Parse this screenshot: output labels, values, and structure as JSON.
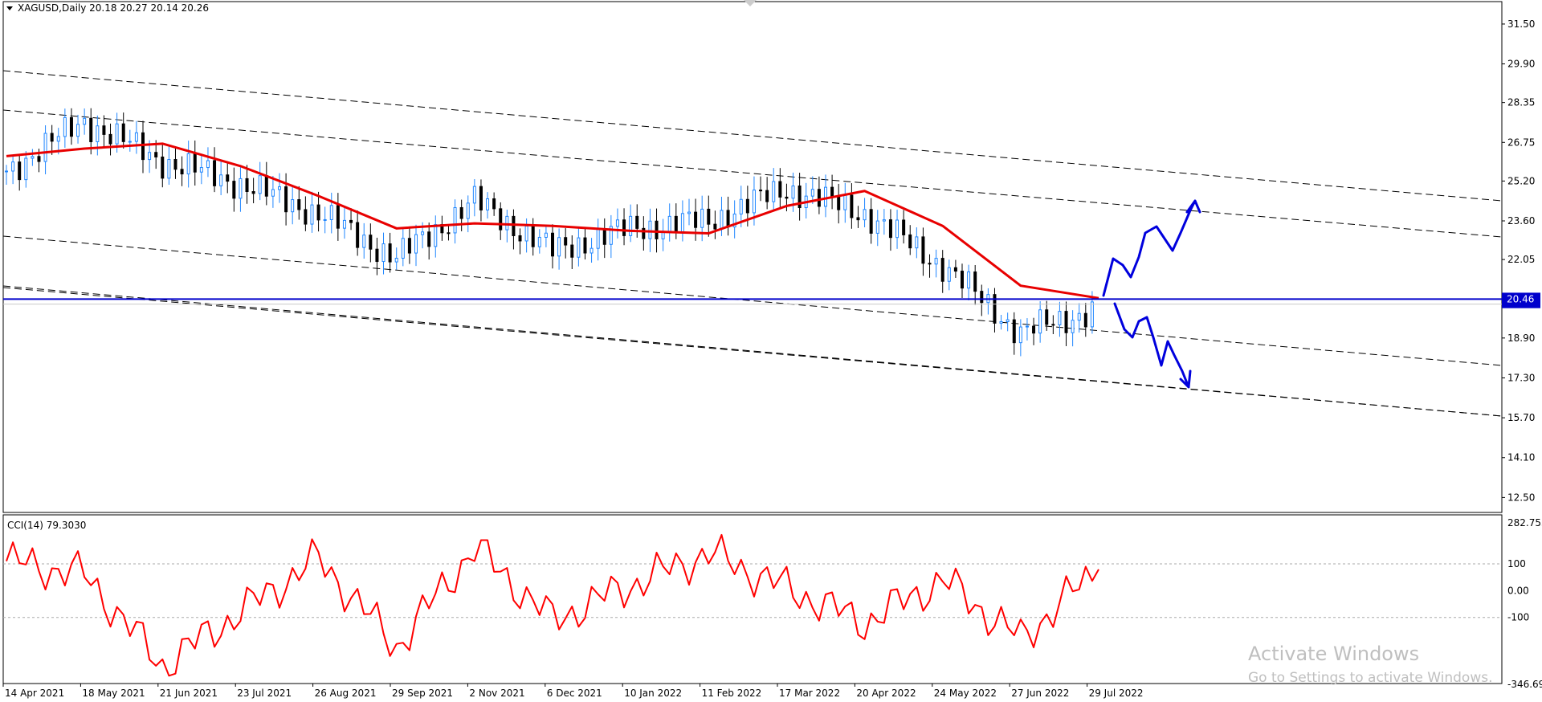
{
  "symbol_header": "XAGUSD,Daily  20.18 20.27 20.14 20.26",
  "indicator_label": "CCI(14) 79.3030",
  "watermark": {
    "title": "Activate Windows",
    "subtitle": "Go to Settings to activate Windows."
  },
  "price_panel": {
    "y_ticks": [
      "31.50",
      "29.90",
      "28.35",
      "26.75",
      "25.20",
      "23.60",
      "22.05",
      "20.46",
      "18.90",
      "17.30",
      "15.70",
      "14.10",
      "12.50"
    ],
    "y_tick_values": [
      31.5,
      29.9,
      28.35,
      26.75,
      25.2,
      23.6,
      22.05,
      20.46,
      18.9,
      17.3,
      15.7,
      14.1,
      12.5
    ],
    "ylim": [
      11.9,
      32.4
    ],
    "current_price_label": "20.46",
    "current_price": 20.46,
    "hidden_price_label": "20.26",
    "hidden_price": 20.26,
    "horizontal_line_price": 20.46
  },
  "cci_panel": {
    "y_ticks": [
      "282.753",
      "100",
      "0.00",
      "-100",
      "-346.697"
    ],
    "y_tick_values": [
      282.753,
      100,
      0,
      -100,
      -346.697
    ],
    "ylim": [
      -346.697,
      282.753
    ]
  },
  "x_axis_labels": [
    "14 Apr 2021",
    "18 May 2021",
    "21 Jun 2021",
    "23 Jul 2021",
    "26 Aug 2021",
    "29 Sep 2021",
    "2 Nov 2021",
    "6 Dec 2021",
    "10 Jan 2022",
    "11 Feb 2022",
    "17 Mar 2022",
    "20 Apr 2022",
    "24 May 2022",
    "27 Jun 2022",
    "29 Jul 2022"
  ],
  "colors": {
    "bull_candle": "#1f86ff",
    "bear_candle": "#000000",
    "moving_average": "#e80000",
    "cci_line": "#ff0000",
    "support_line": "#0000cc",
    "annotation": "#0000dd",
    "price_label_bg": "#0000cc"
  },
  "chart_data": [
    {
      "type": "line",
      "title": "XAGUSD,Daily  20.18 20.27 20.14 20.26",
      "x": [
        "14 Apr 2021",
        "18 May 2021",
        "21 Jun 2021",
        "23 Jul 2021",
        "26 Aug 2021",
        "29 Sep 2021",
        "2 Nov 2021",
        "6 Dec 2021",
        "10 Jan 2022",
        "11 Feb 2022",
        "17 Mar 2022",
        "20 Apr 2022",
        "24 May 2022",
        "27 Jun 2022",
        "29 Jul 2022"
      ],
      "series": [
        {
          "values": [
            25.6,
            27.6,
            26.0,
            25.1,
            23.9,
            22.1,
            24.4,
            22.4,
            23.3,
            23.6,
            24.9,
            23.9,
            21.8,
            19.1,
            20.1
          ]
        },
        {
          "values": [
            26.2,
            26.5,
            26.7,
            25.8,
            24.6,
            23.3,
            23.5,
            23.4,
            23.2,
            23.1,
            24.2,
            24.8,
            23.4,
            21.0,
            20.5
          ]
        }
      ],
      "ohlc_last": {
        "open": 20.18,
        "high": 20.27,
        "low": 20.14,
        "close": 20.26
      },
      "ylim": [
        11.9,
        32.4
      ]
    },
    {
      "type": "line",
      "title": "CCI(14) 79.3030",
      "x": [
        "14 Apr 2021",
        "18 May 2021",
        "21 Jun 2021",
        "23 Jul 2021",
        "26 Aug 2021",
        "29 Sep 2021",
        "2 Nov 2021",
        "6 Dec 2021",
        "10 Jan 2022",
        "11 Feb 2022",
        "17 Mar 2022",
        "20 Apr 2022",
        "24 May 2022",
        "27 Jun 2022",
        "29 Jul 2022"
      ],
      "series": [
        {
          "values": [
            110,
            60,
            -280,
            -80,
            120,
            -210,
            160,
            -110,
            20,
            140,
            10,
            -120,
            40,
            -180,
            79.303
          ]
        }
      ],
      "ylim": [
        -346.697,
        282.753
      ],
      "reference_levels": [
        100,
        0,
        -100
      ]
    }
  ]
}
